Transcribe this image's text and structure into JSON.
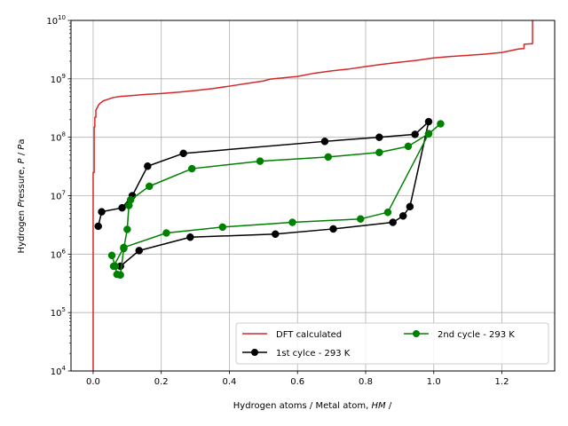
{
  "chart_data": {
    "type": "line",
    "xlabel": "Hydrogen atoms / Metal atom, HM /",
    "ylabel": "Hydrogen Pressure, P / Pa",
    "xlim": [
      -0.065,
      1.355
    ],
    "ylim": [
      10000,
      10000000000
    ],
    "yscale": "log",
    "grid": true,
    "legend_position": "lower-right",
    "x_ticks": [
      0.0,
      0.2,
      0.4,
      0.6,
      0.8,
      1.0,
      1.2
    ],
    "x_tick_labels": [
      "0.0",
      "0.2",
      "0.4",
      "0.6",
      "0.8",
      "1.0",
      "1.2"
    ],
    "y_ticks": [
      10000,
      100000,
      1000000,
      10000000,
      100000000,
      1000000000,
      10000000000
    ],
    "y_tick_labels": [
      {
        "base": "10",
        "exp": "4"
      },
      {
        "base": "10",
        "exp": "5"
      },
      {
        "base": "10",
        "exp": "6"
      },
      {
        "base": "10",
        "exp": "7"
      },
      {
        "base": "10",
        "exp": "8"
      },
      {
        "base": "10",
        "exp": "9"
      },
      {
        "base": "10",
        "exp": "10"
      }
    ],
    "series": [
      {
        "name": "DFT calculated",
        "color": "#d62728",
        "marker": "none",
        "x": [
          0.0,
          0.0,
          0.0,
          0.001,
          0.002,
          0.003,
          0.003,
          0.005,
          0.005,
          0.008,
          0.008,
          0.012,
          0.015,
          0.02,
          0.03,
          0.045,
          0.06,
          0.08,
          0.1,
          0.15,
          0.2,
          0.25,
          0.3,
          0.35,
          0.4,
          0.45,
          0.5,
          0.52,
          0.6,
          0.65,
          0.7,
          0.75,
          0.8,
          0.85,
          0.9,
          0.95,
          1.0,
          1.05,
          1.1,
          1.15,
          1.2,
          1.25,
          1.265,
          1.265,
          1.29,
          1.29
        ],
        "y": [
          10000,
          1000000,
          25000000,
          25000000,
          25000000,
          25000000,
          150000000,
          150000000,
          220000000,
          220000000,
          290000000,
          320000000,
          350000000,
          380000000,
          420000000,
          450000000,
          480000000,
          500000000,
          510000000,
          540000000,
          560000000,
          590000000,
          630000000,
          680000000,
          750000000,
          830000000,
          920000000,
          990000000,
          1100000000,
          1250000000,
          1370000000,
          1470000000,
          1620000000,
          1780000000,
          1920000000,
          2070000000,
          2280000000,
          2420000000,
          2520000000,
          2650000000,
          2830000000,
          3250000000,
          3300000000,
          3900000000,
          4000000000,
          10000000000
        ]
      },
      {
        "name": "1st cylce - 293 K",
        "color": "#000000",
        "marker": "circle",
        "x": [
          0.015,
          0.025,
          0.085,
          0.115,
          0.16,
          0.265,
          0.68,
          0.84,
          0.945,
          0.985,
          0.93,
          0.91,
          0.88,
          0.705,
          0.535,
          0.285,
          0.135,
          0.08
        ],
        "y": [
          3000000,
          5300000,
          6200000,
          10000000,
          32000000,
          53000000,
          85000000,
          100000000,
          112000000,
          185000000,
          6500000,
          4500000,
          3500000,
          2700000,
          2200000,
          1950000,
          1150000,
          620000
        ],
        "points_visible": true
      },
      {
        "name": "2nd cycle - 293 K",
        "color": "#008000",
        "marker": "circle",
        "x": [
          0.055,
          0.065,
          0.07,
          0.08,
          0.09,
          0.1,
          0.105,
          0.11,
          0.165,
          0.29,
          0.49,
          0.69,
          0.84,
          0.925,
          0.985,
          1.02,
          0.985,
          0.865,
          0.785,
          0.585,
          0.38,
          0.215,
          0.09,
          0.06
        ],
        "y": [
          950000,
          620000,
          450000,
          440000,
          1250000,
          2650000,
          6800000,
          8500000,
          14500000,
          29000000,
          39000000,
          46000000,
          55000000,
          70000000,
          115000000,
          170000000,
          115000000,
          5200000,
          4000000,
          3500000,
          2900000,
          2300000,
          1300000,
          620000
        ]
      }
    ]
  }
}
